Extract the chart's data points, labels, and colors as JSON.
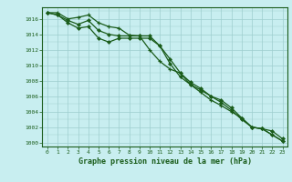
{
  "title": "Graphe pression niveau de la mer (hPa)",
  "background_color": "#c8eef0",
  "grid_color": "#9ecece",
  "line_color": "#1a5c1a",
  "xlim": [
    -0.5,
    23.5
  ],
  "ylim": [
    999.5,
    1017.5
  ],
  "yticks": [
    1000,
    1002,
    1004,
    1006,
    1008,
    1010,
    1012,
    1014,
    1016
  ],
  "xticks": [
    0,
    1,
    2,
    3,
    4,
    5,
    6,
    7,
    8,
    9,
    10,
    11,
    12,
    13,
    14,
    15,
    16,
    17,
    18,
    19,
    20,
    21,
    22,
    23
  ],
  "series1": [
    1016.8,
    1016.8,
    1016.0,
    1016.2,
    1016.5,
    1015.5,
    1015.0,
    1014.8,
    1013.9,
    1013.8,
    1012.0,
    1010.5,
    1009.5,
    1009.0,
    1007.5,
    1006.5,
    1005.5,
    1004.8,
    1004.0,
    1003.2,
    1002.0,
    1001.8,
    1001.0,
    1000.2
  ],
  "series2": [
    1016.8,
    1016.5,
    1015.8,
    1015.3,
    1015.8,
    1014.5,
    1014.0,
    1013.8,
    1013.8,
    1013.8,
    1013.8,
    1012.5,
    1010.8,
    1009.0,
    1007.8,
    1007.0,
    1006.0,
    1005.2,
    1004.2,
    1003.0,
    1002.0,
    1001.8,
    1001.0,
    1000.2
  ],
  "series3": [
    1016.8,
    1016.5,
    1015.5,
    1014.8,
    1015.0,
    1013.5,
    1013.0,
    1013.5,
    1013.5,
    1013.5,
    1013.5,
    1012.5,
    1010.2,
    1008.5,
    1007.5,
    1006.8,
    1006.0,
    1005.5,
    1004.5,
    1003.2,
    1002.0,
    1001.8,
    1001.5,
    1000.5
  ]
}
